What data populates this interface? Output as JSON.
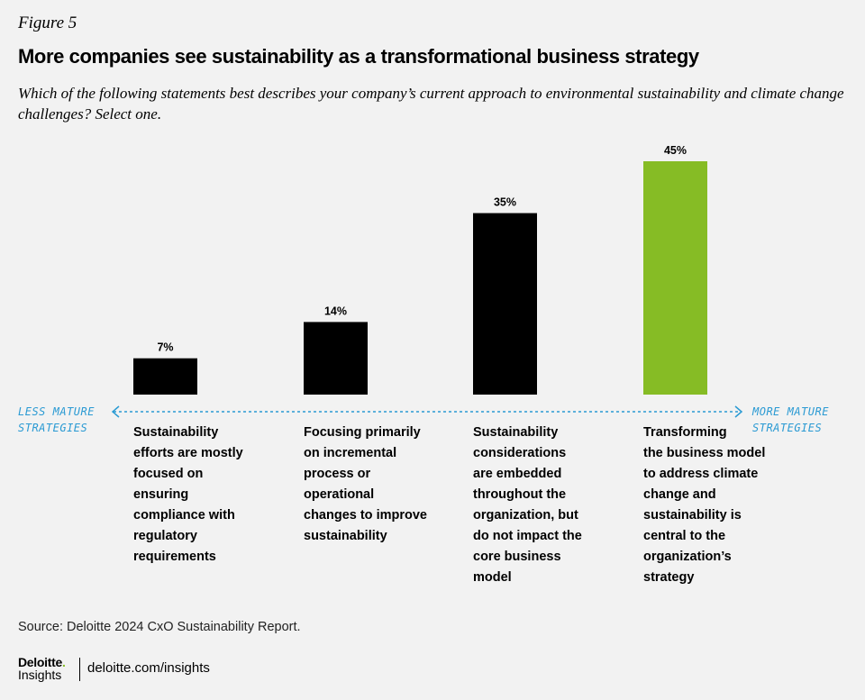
{
  "figure_label": "Figure 5",
  "chart_data": {
    "type": "bar",
    "title": "More companies see sustainability as a transformational business strategy",
    "subtitle": "Which of the following statements best describes your company’s current approach to environmental sustainability and climate change challenges? Select one.",
    "categories": [
      "Sustainability\nefforts are mostly\nfocused on ensuring\ncompliance with\nregulatory\nrequirements",
      "Focusing primarily\n on incremental\nprocess or\noperational\nchanges to improve\nsustainability",
      "Sustainability\nconsiderations\nare embedded\nthroughout the\norganization, but\ndo not impact the\ncore business\nmodel",
      "Transforming\nthe business model\nto address climate\nchange and\nsustainability is\ncentral to the\norganization’s\nstrategy"
    ],
    "values": [
      7,
      14,
      35,
      45
    ],
    "value_labels": [
      "7%",
      "14%",
      "35%",
      "45%"
    ],
    "ylim": [
      0,
      45
    ],
    "colors": [
      "#000000",
      "#000000",
      "#000000",
      "#86bc25"
    ],
    "axis_left_label": "LESS MATURE\nSTRATEGIES",
    "axis_right_label": "MORE MATURE\nSTRATEGIES",
    "axis_color": "#2a9ad3"
  },
  "source": "Source: Deloitte 2024 CxO Sustainability Report.",
  "footer": {
    "brand": "Deloitte",
    "brand_dot": ".",
    "brand_sub": "Insights",
    "site": "deloitte.com/insights"
  }
}
